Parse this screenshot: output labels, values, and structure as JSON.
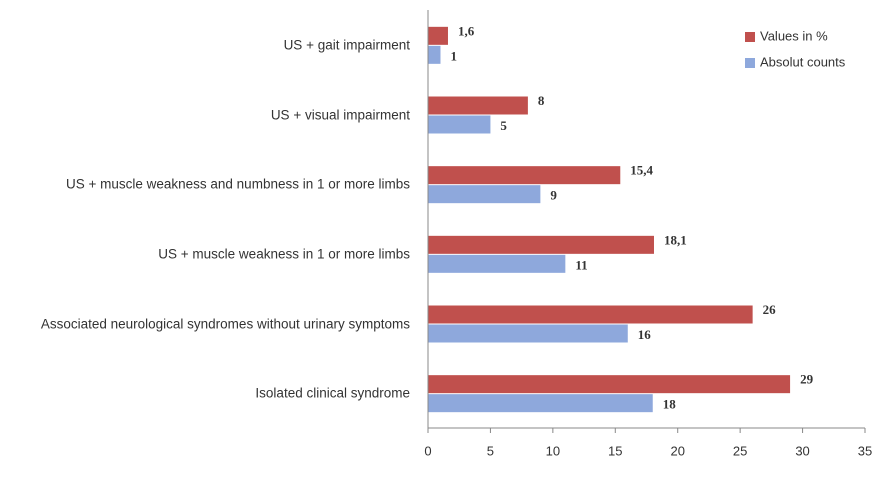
{
  "chart_data": {
    "type": "hbar",
    "categories": [
      "US + gait impairment",
      "US + visual impairment",
      "US + muscle weakness and numbness in 1 or more limbs",
      "US + muscle weakness in 1 or more limbs",
      "Associated neurological syndromes without urinary symptoms",
      "Isolated clinical syndrome"
    ],
    "series": [
      {
        "name": "Values in %",
        "color": "#c0504d",
        "values": [
          1.6,
          8,
          15.4,
          18.1,
          26,
          29
        ],
        "value_labels": [
          "1,6",
          "8",
          "15,4",
          "18,1",
          "26",
          "29"
        ]
      },
      {
        "name": "Absolut counts",
        "color": "#8ea8dc",
        "values": [
          1,
          5,
          9,
          11,
          16,
          18
        ]
      }
    ],
    "xlim": [
      0,
      35
    ],
    "xticks": [
      0,
      5,
      10,
      15,
      20,
      25,
      30,
      35
    ],
    "legend": "upper right"
  }
}
